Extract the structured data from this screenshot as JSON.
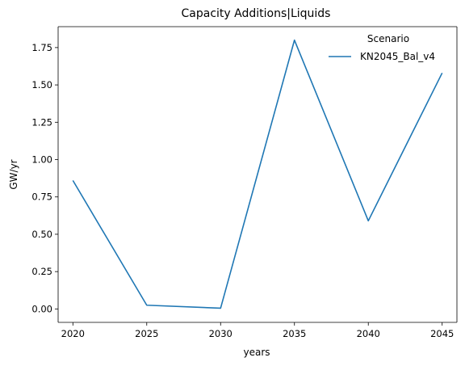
{
  "chart_data": {
    "type": "line",
    "title": "Capacity Additions|Liquids",
    "xlabel": "years",
    "ylabel": "GW/yr",
    "x": [
      2020,
      2025,
      2030,
      2035,
      2040,
      2045
    ],
    "xlim": [
      2019,
      2046
    ],
    "ylim": [
      -0.09,
      1.89
    ],
    "xticks": [
      "2020",
      "2025",
      "2030",
      "2035",
      "2040",
      "2045"
    ],
    "yticks": [
      "0.00",
      "0.25",
      "0.50",
      "0.75",
      "1.00",
      "1.25",
      "1.50",
      "1.75"
    ],
    "grid": false,
    "legend": {
      "title": "Scenario",
      "placement": "top-right"
    },
    "series": [
      {
        "name": "KN2045_Bal_v4",
        "color": "#1f77b4",
        "values": [
          0.86,
          0.025,
          0.005,
          1.8,
          0.59,
          1.58
        ]
      }
    ]
  }
}
